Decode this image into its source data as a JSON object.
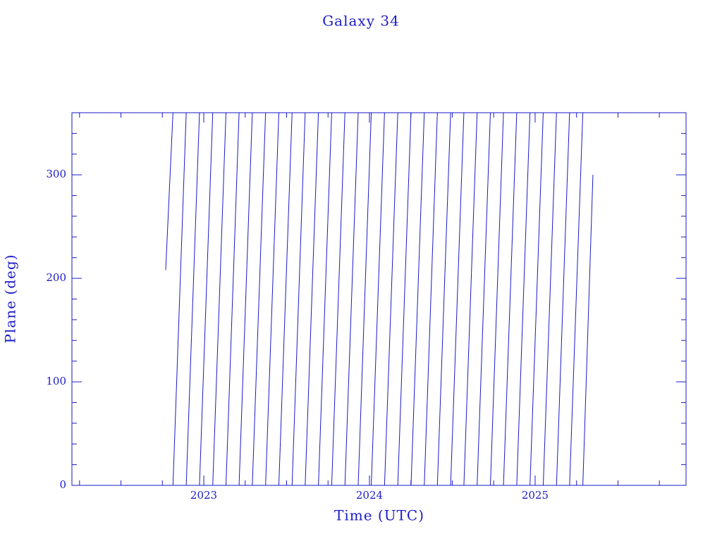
{
  "chart_data": {
    "type": "line",
    "title": "Galaxy 34",
    "xlabel": "Time (UTC)",
    "ylabel": "Plane (deg)",
    "color": "#1a1ac8",
    "xlim": [
      2022.204,
      2025.911
    ],
    "ylim": [
      0,
      360
    ],
    "xticks": [
      2023,
      2024,
      2025
    ],
    "xminorticks": [
      2022.25,
      2022.5,
      2022.75,
      2023.25,
      2023.5,
      2023.75,
      2024.25,
      2024.5,
      2024.75,
      2025.25,
      2025.5,
      2025.75
    ],
    "yticks": [
      0,
      100,
      200,
      300
    ],
    "yminorticks": [
      20,
      40,
      60,
      80,
      120,
      140,
      160,
      180,
      220,
      240,
      260,
      280,
      320,
      340
    ],
    "x": [
      2022.77,
      2022.814,
      2022.814,
      2022.814,
      2022.894,
      2022.894,
      2022.894,
      2022.974,
      2022.974,
      2022.974,
      2023.054,
      2023.054,
      2023.054,
      2023.134,
      2023.134,
      2023.134,
      2023.213,
      2023.213,
      2023.213,
      2023.293,
      2023.293,
      2023.293,
      2023.373,
      2023.373,
      2023.373,
      2023.453,
      2023.453,
      2023.453,
      2023.533,
      2023.533,
      2023.533,
      2023.612,
      2023.612,
      2023.612,
      2023.692,
      2023.692,
      2023.692,
      2023.772,
      2023.772,
      2023.772,
      2023.852,
      2023.852,
      2023.852,
      2023.932,
      2023.932,
      2023.932,
      2024.011,
      2024.011,
      2024.011,
      2024.091,
      2024.091,
      2024.091,
      2024.171,
      2024.171,
      2024.171,
      2024.251,
      2024.251,
      2024.251,
      2024.331,
      2024.331,
      2024.331,
      2024.41,
      2024.41,
      2024.41,
      2024.49,
      2024.49,
      2024.49,
      2024.57,
      2024.57,
      2024.57,
      2024.65,
      2024.65,
      2024.65,
      2024.73,
      2024.73,
      2024.73,
      2024.809,
      2024.809,
      2024.809,
      2024.889,
      2024.889,
      2024.889,
      2024.969,
      2024.969,
      2024.969,
      2025.049,
      2025.049,
      2025.049,
      2025.129,
      2025.129,
      2025.129,
      2025.208,
      2025.208,
      2025.208,
      2025.288,
      2025.288,
      2025.288,
      2025.349
    ],
    "values": [
      208,
      360,
      null,
      0,
      360,
      null,
      0,
      360,
      null,
      0,
      360,
      null,
      0,
      360,
      null,
      0,
      360,
      null,
      0,
      360,
      null,
      0,
      360,
      null,
      0,
      360,
      null,
      0,
      360,
      null,
      0,
      360,
      null,
      0,
      360,
      null,
      0,
      360,
      null,
      0,
      360,
      null,
      0,
      360,
      null,
      0,
      360,
      null,
      0,
      360,
      null,
      0,
      360,
      null,
      0,
      360,
      null,
      0,
      360,
      null,
      0,
      360,
      null,
      0,
      360,
      null,
      0,
      360,
      null,
      0,
      360,
      null,
      0,
      360,
      null,
      0,
      360,
      null,
      0,
      360,
      null,
      0,
      360,
      null,
      0,
      360,
      null,
      0,
      360,
      null,
      0,
      360,
      null,
      0,
      360,
      null,
      0,
      300
    ]
  }
}
